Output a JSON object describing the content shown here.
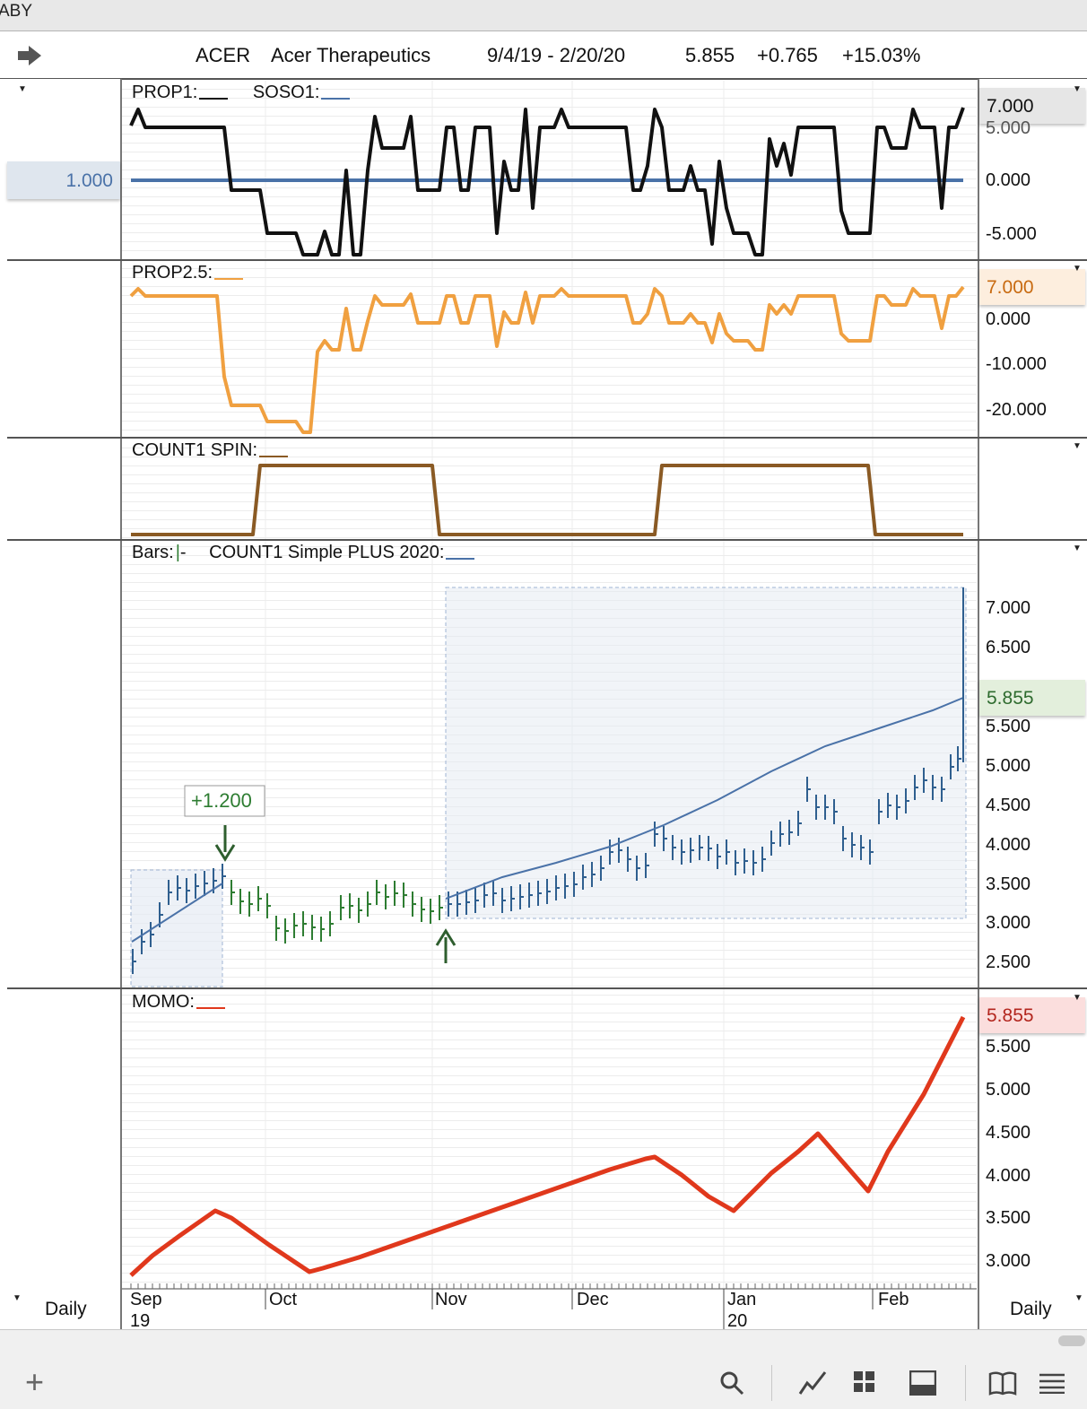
{
  "window": {
    "title_fragment": "ABY"
  },
  "header": {
    "symbol": "ACER",
    "company": "Acer Therapeutics",
    "date_range": "9/4/19 - 2/20/20",
    "last": "5.855",
    "change": "+0.765",
    "change_pct": "+15.03%"
  },
  "panels": {
    "p1": {
      "label_a": "PROP1:",
      "label_b": "SOSO1:",
      "left_value": "1.000",
      "ticks": [
        "7.000",
        "5.000",
        "0.000",
        "-5.000"
      ]
    },
    "p2": {
      "label": "PROP2.5:",
      "ticks": [
        "7.000",
        "0.000",
        "-10.000",
        "-20.000"
      ]
    },
    "p3": {
      "label": "COUNT1 SPIN:"
    },
    "p4": {
      "label_bars": "Bars:",
      "label_bars_suffix": "-",
      "label_line": "COUNT1 Simple PLUS 2020:",
      "annotation": "+1.200",
      "current": "5.855",
      "ticks": [
        "7.000",
        "6.500",
        "5.500",
        "5.000",
        "4.500",
        "4.000",
        "3.500",
        "3.000",
        "2.500"
      ]
    },
    "p5": {
      "label": "MOMO:",
      "current": "5.855",
      "ticks": [
        "5.500",
        "5.000",
        "4.500",
        "4.000",
        "3.500",
        "3.000"
      ]
    }
  },
  "xaxis": {
    "months": [
      "Sep",
      "Oct",
      "Nov",
      "Dec",
      "Jan",
      "Feb"
    ],
    "years": [
      "19",
      "20"
    ]
  },
  "periodicity": {
    "left": "Daily",
    "right": "Daily"
  },
  "colors": {
    "black": "#111111",
    "blue": "#4a72a8",
    "orange": "#f0a040",
    "brown": "#8a5a24",
    "green": "#2e7d32",
    "bar_blue": "#2f5f8f",
    "red": "#e0381c"
  },
  "icons": [
    "arrow-right-icon",
    "plus-icon",
    "search-icon",
    "chart-line-icon",
    "grid-icon",
    "panel-icon",
    "book-icon",
    "list-icon",
    "chevron-down-icon"
  ]
}
